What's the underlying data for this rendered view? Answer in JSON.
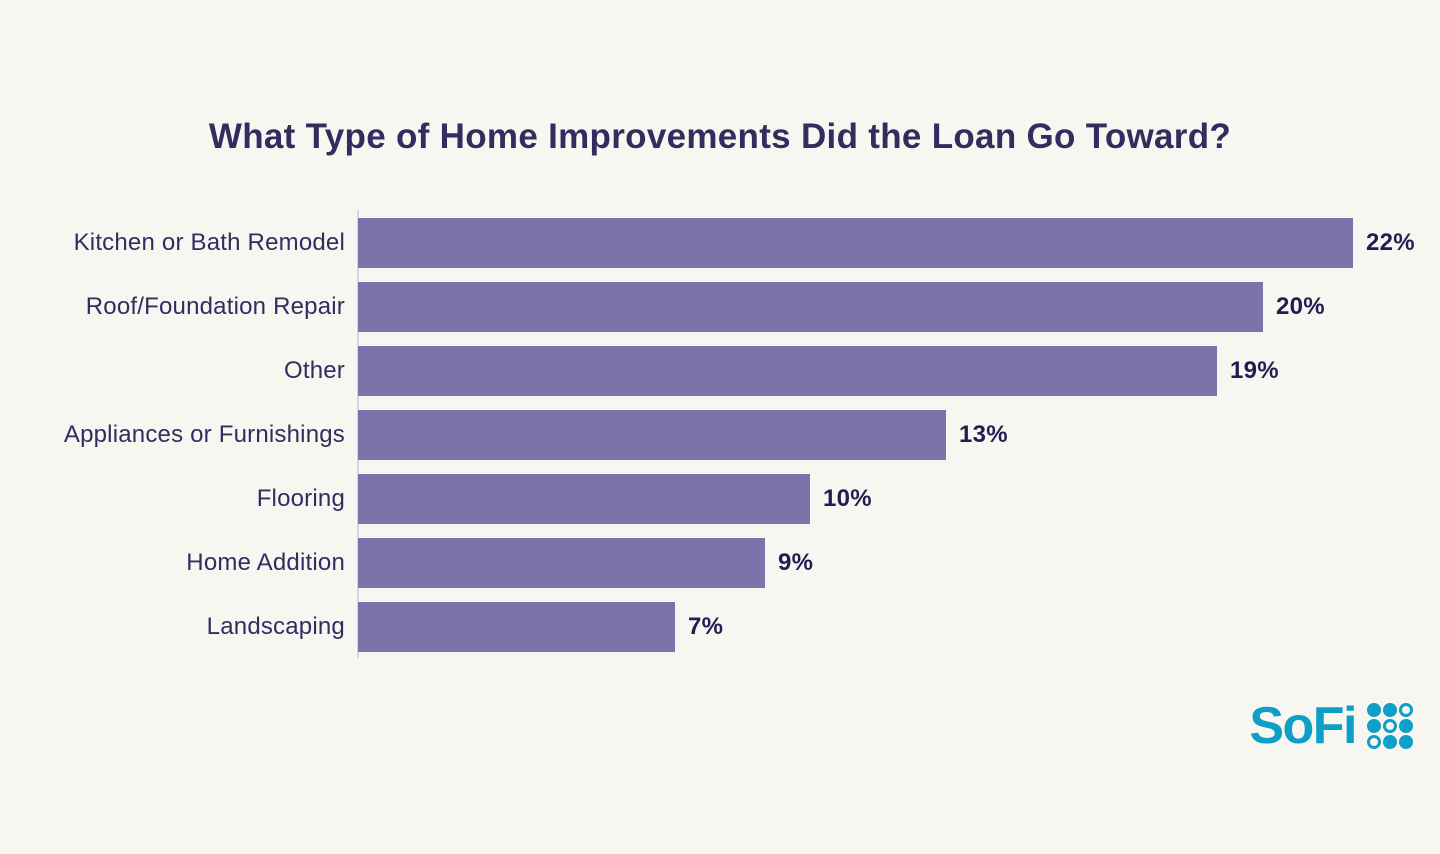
{
  "page": {
    "background_color": "#f8f6f1"
  },
  "chart_data": {
    "type": "bar",
    "orientation": "horizontal",
    "title": "What Type of Home Improvements Did the Loan Go Toward?",
    "categories": [
      "Kitchen or Bath Remodel",
      "Roof/Foundation Repair",
      "Other",
      "Appliances or Furnishings",
      "Flooring",
      "Home Addition",
      "Landscaping"
    ],
    "values": [
      22,
      20,
      19,
      13,
      10,
      9,
      7
    ],
    "value_labels": [
      "22%",
      "20%",
      "19%",
      "13%",
      "10%",
      "9%",
      "7%"
    ],
    "xlabel": "",
    "ylabel": "",
    "xlim": [
      0,
      22
    ],
    "grid": false,
    "legend": false,
    "bar_color": "#7b74ab",
    "title_color": "#322d5e",
    "category_label_color": "#322d5e",
    "value_label_color": "#221d51",
    "axis_line_color": "#d9d6e0"
  },
  "branding": {
    "logo_text": "SoFi",
    "logo_color": "#0d9fc7",
    "logo_grid": [
      [
        1,
        1,
        0
      ],
      [
        1,
        0,
        1
      ],
      [
        0,
        1,
        1
      ]
    ]
  }
}
